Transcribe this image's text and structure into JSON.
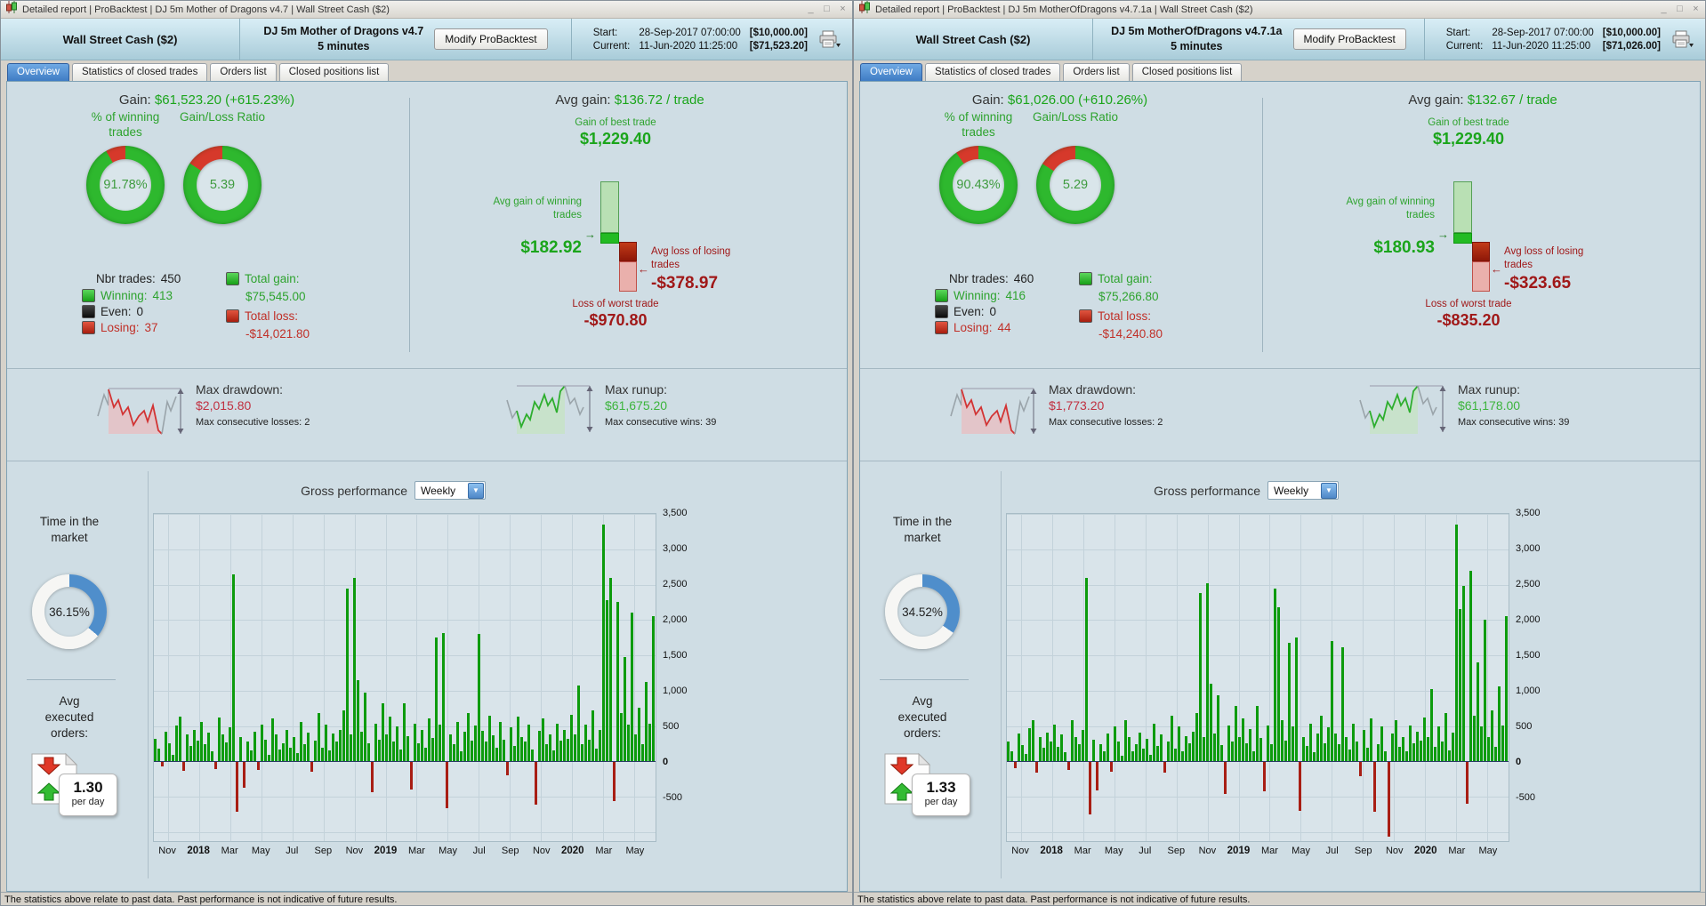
{
  "status_text": "The statistics above relate to past data. Past performance is not indicative of future results.",
  "icons": {
    "minimize": "_",
    "maximize": "□",
    "close": "×",
    "dropdown_arrow": "▼",
    "arrow_right": "→",
    "arrow_left": "←"
  },
  "windows": [
    {
      "title": "Detailed report | ProBacktest | DJ 5m Mother of Dragons v4.7 | Wall Street Cash ($2)",
      "header": {
        "instrument": "Wall Street Cash ($2)",
        "strategy": "DJ 5m Mother of Dragons v4.7",
        "timeframe": "5 minutes",
        "modify_button": "Modify ProBacktest",
        "start_label": "Start:",
        "start_date": "28-Sep-2017 07:00:00",
        "start_value": "[$10,000.00]",
        "current_label": "Current:",
        "current_date": "11-Jun-2020 11:25:00",
        "current_value": "[$71,523.20]"
      },
      "tabs": {
        "overview": "Overview",
        "stats": "Statistics of closed trades",
        "orders": "Orders list",
        "closed": "Closed positions list"
      },
      "overview": {
        "gain_label": "Gain:",
        "gain_value": "$61,523.20 (+615.23%)",
        "winning_title": "% of winning trades",
        "winning_pct_label": "91.78%",
        "winning_pct": 91.78,
        "ratio_title": "Gain/Loss Ratio",
        "ratio_label": "5.39",
        "ratio": 5.39,
        "nbr_trades_label": "Nbr trades:",
        "nbr_trades": "450",
        "winning_label": "Winning:",
        "winning": "413",
        "even_label": "Even:",
        "even": "0",
        "losing_label": "Losing:",
        "losing": "37",
        "total_gain_label": "Total gain:",
        "total_gain": "$75,545.00",
        "total_loss_label": "Total loss:",
        "total_loss": "-$14,021.80",
        "avg_gain_label": "Avg gain:",
        "avg_gain_value": "$136.72 / trade",
        "best_trade_label": "Gain of best trade",
        "best_trade": "$1,229.40",
        "avg_win_label": "Avg gain of winning trades",
        "avg_win": "$182.92",
        "avg_loss_label": "Avg loss of losing trades",
        "avg_loss": "-$378.97",
        "worst_trade_label": "Loss of worst trade",
        "worst_trade": "-$970.80",
        "max_drawdown_label": "Max drawdown:",
        "max_drawdown": "$2,015.80",
        "max_consec_losses": "Max consecutive losses: 2",
        "max_runup_label": "Max runup:",
        "max_runup": "$61,675.20",
        "max_consec_wins": "Max consecutive wins: 39",
        "time_in_market_label": "Time in the market",
        "time_in_market_pct_label": "36.15%",
        "time_in_market": 36.15,
        "avg_orders_label": "Avg executed orders:",
        "avg_orders": "1.30",
        "avg_orders_unit": "per day"
      },
      "chart_data": {
        "type": "bar",
        "title": "Gross performance",
        "period": "Weekly",
        "ylim": [
          -1125,
          3500
        ],
        "yticks": [
          3500,
          3000,
          2500,
          2000,
          1500,
          1000,
          500,
          0,
          -500
        ],
        "xlabels": [
          "Nov",
          "2018",
          "Mar",
          "May",
          "Jul",
          "Sep",
          "Nov",
          "2019",
          "Mar",
          "May",
          "Jul",
          "Sep",
          "Nov",
          "2020",
          "Mar",
          "May"
        ],
        "values": [
          320,
          180,
          -60,
          420,
          260,
          90,
          510,
          640,
          -120,
          380,
          220,
          450,
          300,
          560,
          240,
          410,
          150,
          -90,
          620,
          380,
          270,
          480,
          2650,
          -700,
          340,
          -360,
          280,
          160,
          420,
          -110,
          520,
          310,
          90,
          610,
          380,
          170,
          260,
          440,
          200,
          350,
          120,
          560,
          240,
          410,
          -130,
          300,
          680,
          200,
          520,
          160,
          390,
          280,
          450,
          720,
          2450,
          380,
          2600,
          1150,
          420,
          980,
          260,
          -420,
          540,
          310,
          820,
          380,
          640,
          280,
          490,
          170,
          820,
          360,
          -380,
          540,
          260,
          440,
          190,
          610,
          330,
          1750,
          520,
          1820,
          -650,
          380,
          240,
          560,
          150,
          420,
          680,
          290,
          510,
          1800,
          430,
          280,
          650,
          370,
          190,
          560,
          310,
          -180,
          480,
          220,
          640,
          350,
          280,
          520,
          170,
          -600,
          430,
          610,
          240,
          380,
          160,
          540,
          290,
          450,
          320,
          660,
          380,
          1080,
          240,
          520,
          310,
          720,
          180,
          440,
          3350,
          2280,
          2600,
          -550,
          2250,
          680,
          1480,
          520,
          2100,
          380,
          760,
          240,
          1120,
          540,
          2050
        ]
      }
    },
    {
      "title": "Detailed report | ProBacktest | DJ 5m MotherOfDragons v4.7.1a | Wall Street Cash ($2)",
      "header": {
        "instrument": "Wall Street Cash ($2)",
        "strategy": "DJ 5m MotherOfDragons v4.7.1a",
        "timeframe": "5 minutes",
        "modify_button": "Modify ProBacktest",
        "start_label": "Start:",
        "start_date": "28-Sep-2017 07:00:00",
        "start_value": "[$10,000.00]",
        "current_label": "Current:",
        "current_date": "11-Jun-2020 11:25:00",
        "current_value": "[$71,026.00]"
      },
      "tabs": {
        "overview": "Overview",
        "stats": "Statistics of closed trades",
        "orders": "Orders list",
        "closed": "Closed positions list"
      },
      "overview": {
        "gain_label": "Gain:",
        "gain_value": "$61,026.00 (+610.26%)",
        "winning_title": "% of winning trades",
        "winning_pct_label": "90.43%",
        "winning_pct": 90.43,
        "ratio_title": "Gain/Loss Ratio",
        "ratio_label": "5.29",
        "ratio": 5.29,
        "nbr_trades_label": "Nbr trades:",
        "nbr_trades": "460",
        "winning_label": "Winning:",
        "winning": "416",
        "even_label": "Even:",
        "even": "0",
        "losing_label": "Losing:",
        "losing": "44",
        "total_gain_label": "Total gain:",
        "total_gain": "$75,266.80",
        "total_loss_label": "Total loss:",
        "total_loss": "-$14,240.80",
        "avg_gain_label": "Avg gain:",
        "avg_gain_value": "$132.67 / trade",
        "best_trade_label": "Gain of best trade",
        "best_trade": "$1,229.40",
        "avg_win_label": "Avg gain of winning trades",
        "avg_win": "$180.93",
        "avg_loss_label": "Avg loss of losing trades",
        "avg_loss": "-$323.65",
        "worst_trade_label": "Loss of worst trade",
        "worst_trade": "-$835.20",
        "max_drawdown_label": "Max drawdown:",
        "max_drawdown": "$1,773.20",
        "max_consec_losses": "Max consecutive losses: 2",
        "max_runup_label": "Max runup:",
        "max_runup": "$61,178.00",
        "max_consec_wins": "Max consecutive wins: 39",
        "time_in_market_label": "Time in the market",
        "time_in_market_pct_label": "34.52%",
        "time_in_market": 34.52,
        "avg_orders_label": "Avg executed orders:",
        "avg_orders": "1.33",
        "avg_orders_unit": "per day"
      },
      "chart_data": {
        "type": "bar",
        "title": "Gross performance",
        "period": "Weekly",
        "ylim": [
          -1125,
          3500
        ],
        "yticks": [
          3500,
          3000,
          2500,
          2000,
          1500,
          1000,
          500,
          0,
          -500
        ],
        "xlabels": [
          "Nov",
          "2018",
          "Mar",
          "May",
          "Jul",
          "Sep",
          "Nov",
          "2019",
          "Mar",
          "May",
          "Jul",
          "Sep",
          "Nov",
          "2020",
          "Mar",
          "May"
        ],
        "values": [
          280,
          150,
          -80,
          390,
          230,
          110,
          470,
          590,
          -140,
          350,
          200,
          410,
          280,
          520,
          210,
          380,
          130,
          -110,
          580,
          350,
          240,
          450,
          2600,
          -730,
          310,
          -390,
          250,
          140,
          390,
          -130,
          490,
          280,
          80,
          580,
          350,
          150,
          240,
          410,
          180,
          320,
          100,
          530,
          220,
          380,
          -150,
          280,
          650,
          180,
          490,
          140,
          360,
          260,
          420,
          690,
          2380,
          350,
          2520,
          1100,
          390,
          940,
          230,
          -450,
          510,
          280,
          790,
          350,
          610,
          260,
          460,
          150,
          790,
          330,
          -410,
          510,
          240,
          2450,
          2180,
          580,
          300,
          1680,
          490,
          1750,
          -680,
          350,
          220,
          530,
          130,
          390,
          650,
          260,
          480,
          1700,
          400,
          250,
          1620,
          340,
          170,
          530,
          280,
          -200,
          450,
          200,
          610,
          -700,
          250,
          490,
          150,
          -1050,
          400,
          580,
          210,
          350,
          140,
          510,
          260,
          420,
          290,
          620,
          350,
          1020,
          210,
          490,
          280,
          690,
          160,
          410,
          3350,
          2150,
          2480,
          -580,
          2700,
          650,
          1400,
          490,
          2000,
          350,
          720,
          210,
          1060,
          510,
          2050
        ]
      }
    }
  ]
}
